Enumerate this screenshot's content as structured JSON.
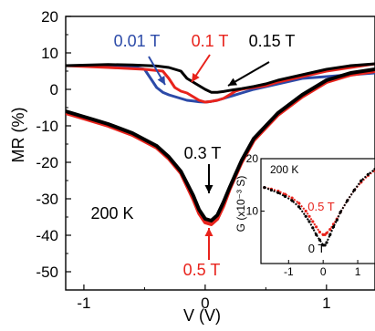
{
  "colors": {
    "black": "#000000",
    "red": "#e8231c",
    "blue": "#2c4aa8",
    "background": "#ffffff"
  },
  "chart_data": [
    {
      "type": "line",
      "xlabel": "V (V)",
      "ylabel": "MR (%)",
      "xlim": [
        -1.15,
        1.4
      ],
      "ylim": [
        -55,
        20
      ],
      "xticks": [
        -1,
        0,
        1
      ],
      "xtick_labels": [
        "-1",
        "0",
        "1"
      ],
      "yticks": [
        20,
        10,
        0,
        -10,
        -20,
        -30,
        -40,
        -50
      ],
      "ytick_labels": [
        "20",
        "10",
        "0",
        "-10",
        "-20",
        "-30",
        "-40",
        "-50"
      ],
      "grid": false,
      "series": [
        {
          "name": "0.01 T",
          "color": "#2c4aa8",
          "x": [
            -1.15,
            -0.8,
            -0.6,
            -0.5,
            -0.45,
            -0.4,
            -0.35,
            -0.3,
            -0.25,
            -0.2,
            -0.15,
            -0.1,
            -0.05,
            0.0,
            0.05,
            0.1,
            0.15,
            0.2,
            0.3,
            0.4,
            0.6,
            0.8,
            1.0,
            1.2,
            1.4
          ],
          "y": [
            6.5,
            6.5,
            6.2,
            5.5,
            3.0,
            0.5,
            -0.8,
            -1.5,
            -2.0,
            -2.5,
            -3.0,
            -3.2,
            -3.4,
            -3.5,
            -3.3,
            -3.0,
            -2.5,
            -2.0,
            -1.0,
            0.0,
            1.5,
            3.0,
            3.5,
            4.0,
            4.5
          ]
        },
        {
          "name": "0.1 T",
          "color": "#e8231c",
          "x": [
            -1.15,
            -0.8,
            -0.5,
            -0.35,
            -0.3,
            -0.25,
            -0.2,
            -0.15,
            -0.1,
            -0.05,
            0.0,
            0.05,
            0.1,
            0.15,
            0.2,
            0.25,
            0.3,
            0.35,
            0.4,
            0.5,
            0.6,
            0.8,
            1.0,
            1.2,
            1.4
          ],
          "y": [
            6.5,
            6.0,
            5.5,
            5.0,
            3.0,
            0.5,
            -0.5,
            -1.0,
            -2.0,
            -3.0,
            -3.5,
            -3.3,
            -3.0,
            -2.5,
            -1.5,
            -0.5,
            0.0,
            0.3,
            0.5,
            1.0,
            2.0,
            3.5,
            5.0,
            6.0,
            7.0
          ]
        },
        {
          "name": "0.15 T",
          "color": "#000000",
          "x": [
            -1.15,
            -0.8,
            -0.6,
            -0.4,
            -0.3,
            -0.2,
            -0.15,
            -0.1,
            -0.05,
            0.0,
            0.05,
            0.1,
            0.15,
            0.2,
            0.3,
            0.4,
            0.5,
            0.6,
            0.8,
            1.0,
            1.2,
            1.4
          ],
          "y": [
            6.5,
            6.8,
            6.7,
            6.4,
            6.0,
            5.0,
            3.0,
            2.0,
            1.0,
            0.0,
            -0.8,
            -0.8,
            -0.6,
            -0.3,
            0.2,
            0.8,
            1.5,
            2.5,
            4.0,
            5.5,
            6.5,
            7.0
          ]
        },
        {
          "name": "0.5 T",
          "color": "#e8231c",
          "x": [
            -1.15,
            -1.0,
            -0.8,
            -0.6,
            -0.4,
            -0.3,
            -0.2,
            -0.1,
            -0.05,
            0.0,
            0.05,
            0.1,
            0.15,
            0.2,
            0.3,
            0.4,
            0.6,
            0.8,
            1.0,
            1.2,
            1.4
          ],
          "y": [
            -6.5,
            -8.0,
            -10.0,
            -12.5,
            -16.0,
            -19.0,
            -23.0,
            -30.0,
            -34.0,
            -36.5,
            -37.0,
            -35.5,
            -32.0,
            -27.5,
            -20.0,
            -14.0,
            -7.0,
            -2.0,
            2.0,
            4.0,
            5.0
          ]
        },
        {
          "name": "0.3 T",
          "color": "#000000",
          "x": [
            -1.15,
            -1.0,
            -0.8,
            -0.6,
            -0.4,
            -0.3,
            -0.2,
            -0.1,
            -0.05,
            0.0,
            0.05,
            0.1,
            0.15,
            0.2,
            0.3,
            0.4,
            0.6,
            0.8,
            1.0,
            1.2,
            1.4
          ],
          "y": [
            -6.0,
            -7.5,
            -9.5,
            -12.0,
            -15.5,
            -18.5,
            -22.5,
            -29.0,
            -33.0,
            -35.5,
            -36.0,
            -34.5,
            -31.0,
            -27.0,
            -19.5,
            -13.5,
            -6.5,
            -1.5,
            2.5,
            4.5,
            5.5
          ]
        }
      ],
      "annotations": [
        {
          "text": "0.01 T",
          "color": "#2c4aa8"
        },
        {
          "text": "0.1 T",
          "color": "#e8231c"
        },
        {
          "text": "0.15 T",
          "color": "#000000"
        },
        {
          "text": "0.3 T",
          "color": "#000000"
        },
        {
          "text": "0.5 T",
          "color": "#e8231c"
        },
        {
          "text": "200 K",
          "color": "#000000"
        }
      ]
    },
    {
      "type": "scatter",
      "xlabel": "",
      "ylabel": "G (x10⁻³ S)",
      "xlim": [
        -1.8,
        1.5
      ],
      "ylim": [
        0,
        20
      ],
      "xticks": [
        -1,
        0,
        1
      ],
      "xtick_labels": [
        "-1",
        "0",
        "1"
      ],
      "yticks": [
        10,
        20
      ],
      "ytick_labels": [
        "10",
        "20"
      ],
      "grid": false,
      "series": [
        {
          "name": "0.5 T",
          "color": "#e8231c",
          "x": [
            -1.7,
            -1.5,
            -1.3,
            -1.1,
            -0.9,
            -0.7,
            -0.5,
            -0.4,
            -0.3,
            -0.2,
            -0.1,
            0.0,
            0.05,
            0.1,
            0.2,
            0.3,
            0.4,
            0.5,
            0.7,
            0.9,
            1.1,
            1.3,
            1.5
          ],
          "y": [
            14.5,
            14.2,
            13.8,
            13.2,
            12.5,
            11.5,
            10.0,
            9.0,
            8.0,
            7.0,
            6.0,
            5.5,
            5.5,
            5.8,
            6.5,
            7.5,
            8.5,
            9.8,
            12.0,
            14.0,
            15.5,
            16.8,
            17.8
          ]
        },
        {
          "name": "0 T",
          "color": "#000000",
          "x": [
            -1.7,
            -1.5,
            -1.3,
            -1.1,
            -0.9,
            -0.7,
            -0.5,
            -0.4,
            -0.3,
            -0.2,
            -0.1,
            0.0,
            0.05,
            0.1,
            0.2,
            0.3,
            0.4,
            0.5,
            0.7,
            0.9,
            1.1,
            1.3,
            1.5
          ],
          "y": [
            14.5,
            14.0,
            13.5,
            12.8,
            12.0,
            10.8,
            9.0,
            8.0,
            6.8,
            5.5,
            4.5,
            3.5,
            3.5,
            4.0,
            5.5,
            7.0,
            8.3,
            9.8,
            12.0,
            14.0,
            15.8,
            17.0,
            18.0
          ]
        }
      ],
      "annotations": [
        {
          "text": "200 K",
          "color": "#000000"
        },
        {
          "text": "0.5 T",
          "color": "#e8231c"
        },
        {
          "text": "0 T",
          "color": "#000000"
        }
      ]
    }
  ]
}
